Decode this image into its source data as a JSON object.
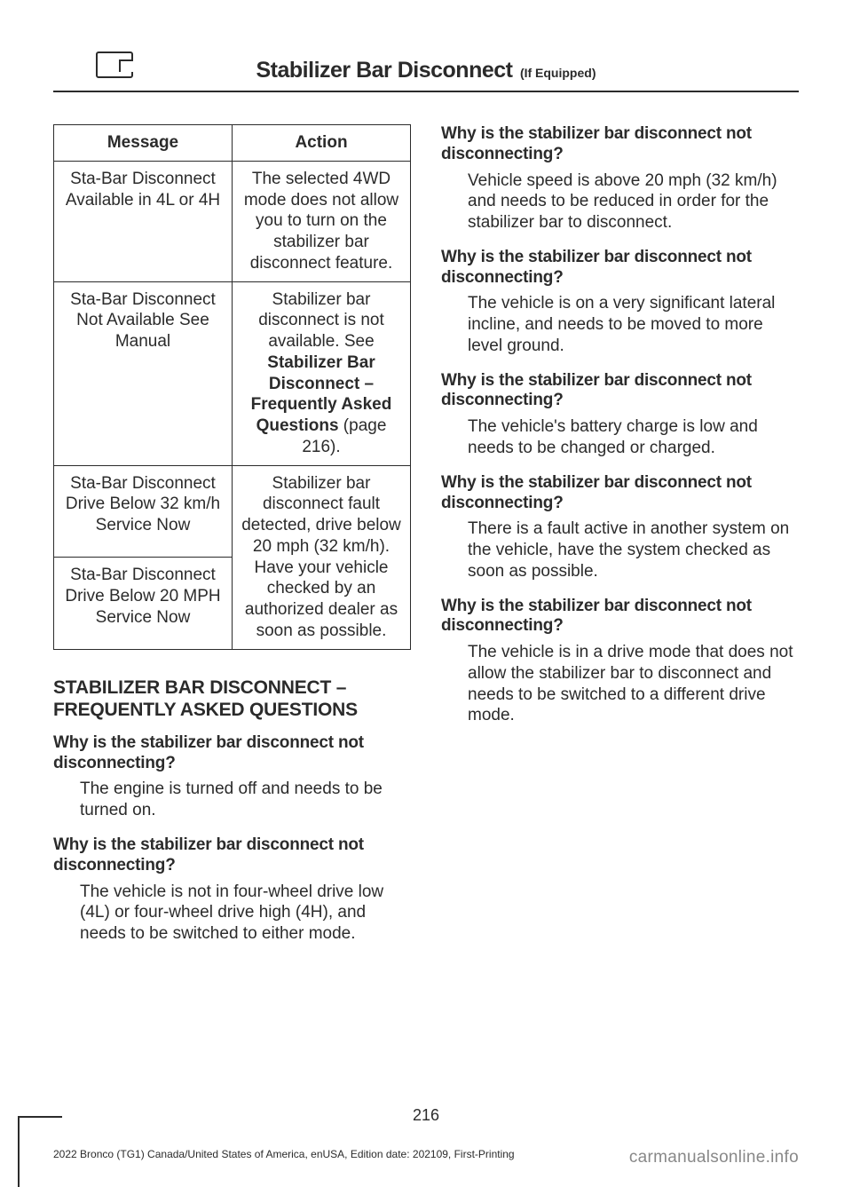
{
  "header": {
    "title": "Stabilizer Bar Disconnect",
    "subtitle": "(If Equipped)"
  },
  "table": {
    "col1": "Message",
    "col2": "Action",
    "rows": [
      {
        "msg": "Sta-Bar Disconnect Available in 4L or 4H",
        "action_pre": "The selected 4WD mode does not allow you to turn on the stabilizer bar disconnect feature.",
        "action_bold": "",
        "action_post": ""
      },
      {
        "msg": "Sta-Bar Disconnect Not Available See Manual",
        "action_pre": "Stabilizer bar disconnect is not available.  See ",
        "action_bold": "Stabilizer Bar Disconnect – Frequently Asked Questions",
        "action_post": " (page 216)."
      },
      {
        "msg": "Sta-Bar Disconnect Drive Below 32 km/h Service Now",
        "action_pre": "Stabilizer bar disconnect fault detected, drive below 20 mph (32 km/h). Have your vehicle checked by an authorized dealer as soon as possible.",
        "action_bold": "",
        "action_post": ""
      },
      {
        "msg": "Sta-Bar Disconnect Drive Below 20 MPH Service Now",
        "action_pre": "",
        "action_bold": "",
        "action_post": ""
      }
    ]
  },
  "faq_heading": "STABILIZER BAR DISCONNECT – FREQUENTLY ASKED QUESTIONS",
  "faqs": [
    {
      "q": "Why is the stabilizer bar disconnect not disconnecting?",
      "a": "The engine is turned off and needs to be turned on."
    },
    {
      "q": "Why is the stabilizer bar disconnect not disconnecting?",
      "a": "The vehicle is not in four-wheel drive low (4L) or four-wheel drive high (4H), and needs to be switched to either mode."
    },
    {
      "q": "Why is the stabilizer bar disconnect not disconnecting?",
      "a": "Vehicle speed is above 20 mph (32 km/h) and needs to be reduced in order for the stabilizer bar to disconnect."
    },
    {
      "q": "Why is the stabilizer bar disconnect not disconnecting?",
      "a": "The vehicle is on a very significant lateral incline, and needs to be moved to more level ground."
    },
    {
      "q": "Why is the stabilizer bar disconnect not disconnecting?",
      "a": "The vehicle's battery charge is low and needs to be changed or charged."
    },
    {
      "q": "Why is the stabilizer bar disconnect not disconnecting?",
      "a": "There is a fault active in another system on the vehicle, have the system checked as soon as possible."
    },
    {
      "q": "Why is the stabilizer bar disconnect not disconnecting?",
      "a": "The vehicle is in a drive mode that does not allow the stabilizer bar to disconnect and needs to be switched to a different drive mode."
    }
  ],
  "page_number": "216",
  "footer_left": "2022 Bronco (TG1) Canada/United States of America, enUSA, Edition date: 202109, First-Printing",
  "footer_right": "carmanualsonline.info"
}
